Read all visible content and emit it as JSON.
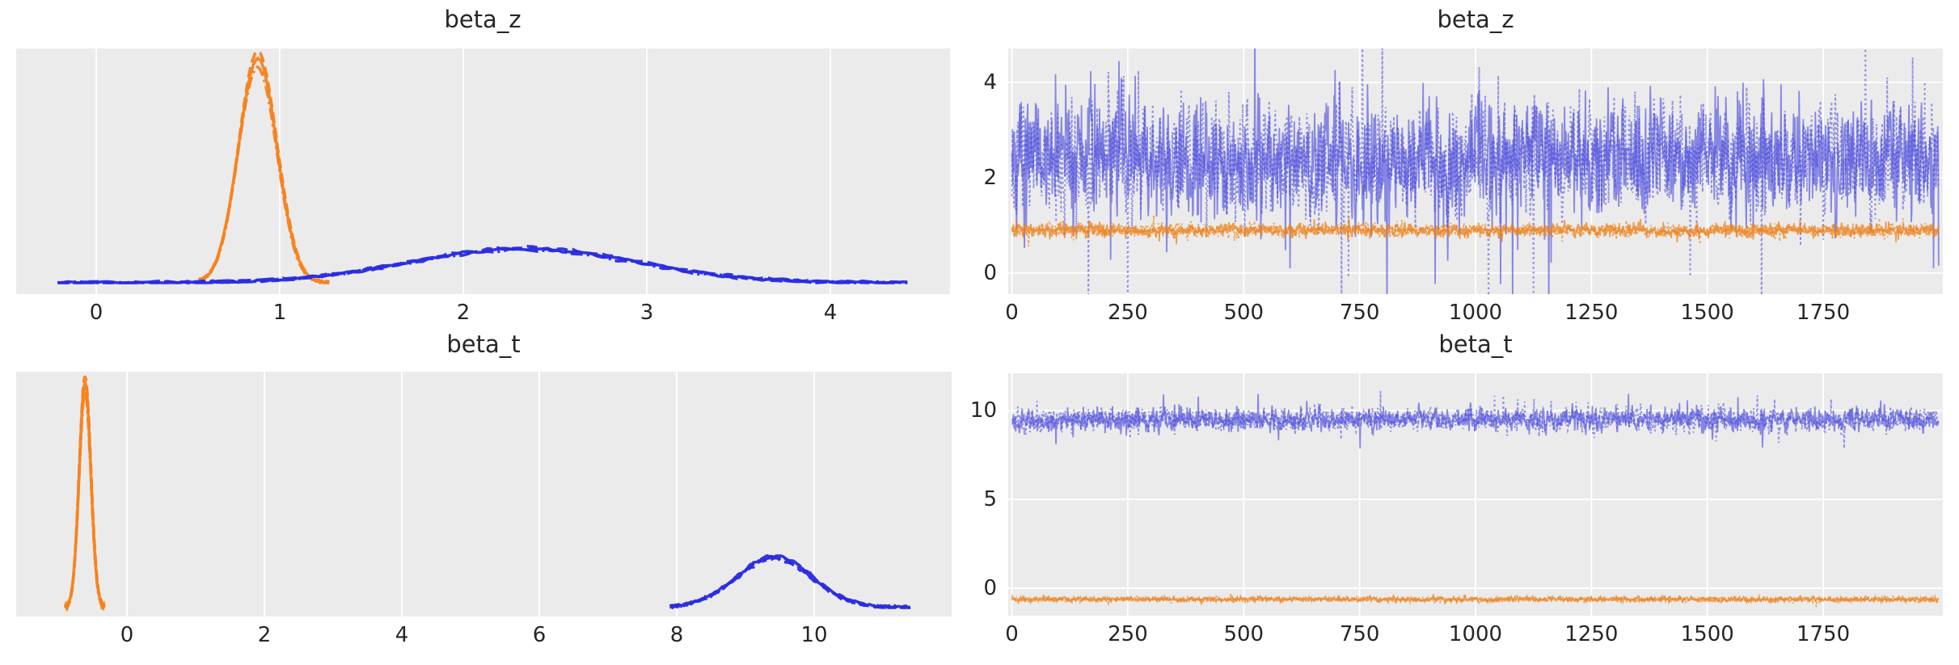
{
  "figure_title": "",
  "colors": {
    "kde_blue": "#2b2be0",
    "kde_orange": "#f5831f",
    "trace_blue": "#4343dc",
    "trace_orange": "#ee7d12",
    "panel_bg": "#ebebeb",
    "grid": "#ffffff",
    "text": "#262626",
    "figure_bg": "#ffffff"
  },
  "chart_data": [
    {
      "id": "beta_z_posterior",
      "type": "line",
      "subtype": "kde",
      "title": "beta_z",
      "xlabel": "",
      "ylabel": "",
      "xlim": [
        -0.436,
        4.652
      ],
      "xticks": [
        0,
        1,
        2,
        3,
        4
      ],
      "yticks": [],
      "grid": "vertical",
      "legend": "none",
      "series": [
        {
          "name": "beta_z[orange] kde",
          "color_key": "kde_orange",
          "dist": "gaussian",
          "mean": 0.88,
          "sd": 0.105,
          "peak_rel": 1.0,
          "range": [
            0.56,
            1.27
          ],
          "chains": 3,
          "linestyles": [
            "solid",
            "dashed",
            "dashdot"
          ]
        },
        {
          "name": "beta_z[blue] kde",
          "color_key": "kde_blue",
          "dist": "gaussian",
          "mean": 2.33,
          "sd": 0.62,
          "peak_rel": 0.152,
          "range": [
            -0.21,
            4.42
          ],
          "chains": 3,
          "linestyles": [
            "solid",
            "dashed",
            "dashdot"
          ]
        }
      ]
    },
    {
      "id": "beta_z_trace",
      "type": "line",
      "subtype": "trace",
      "title": "beta_z",
      "xlabel": "",
      "ylabel": "",
      "xlim": [
        -8,
        2008
      ],
      "ylim": [
        -0.44,
        4.71
      ],
      "xticks": [
        0,
        250,
        500,
        750,
        1000,
        1250,
        1500,
        1750
      ],
      "yticks": [
        0,
        2,
        4
      ],
      "grid": "both",
      "legend": "none",
      "n_draws": 2000,
      "series": [
        {
          "name": "beta_z[blue] trace",
          "color_key": "trace_blue",
          "opacity": 0.6,
          "mean": 2.38,
          "sd": 0.58,
          "ar": 0.3,
          "spike_p": 0.008,
          "spike_mult": 2.6,
          "chains": 2,
          "linestyles": [
            "solid",
            "dotted"
          ],
          "seed": 11
        },
        {
          "name": "beta_z[orange] trace",
          "color_key": "trace_orange",
          "opacity": 0.7,
          "mean": 0.9,
          "sd": 0.07,
          "ar": 0.25,
          "spike_p": 0.006,
          "spike_mult": 2.2,
          "chains": 2,
          "linestyles": [
            "solid",
            "dotted"
          ],
          "seed": 23
        }
      ]
    },
    {
      "id": "beta_t_posterior",
      "type": "line",
      "subtype": "kde",
      "title": "beta_t",
      "xlabel": "",
      "ylabel": "",
      "xlim": [
        -1.612,
        12.0
      ],
      "xticks": [
        0,
        2,
        4,
        6,
        8,
        10
      ],
      "yticks": [],
      "grid": "vertical",
      "legend": "none",
      "series": [
        {
          "name": "beta_t[orange] kde",
          "color_key": "kde_orange",
          "dist": "gaussian",
          "mean": -0.61,
          "sd": 0.085,
          "peak_rel": 1.0,
          "range": [
            -0.9,
            -0.33
          ],
          "chains": 3,
          "linestyles": [
            "solid",
            "dashed",
            "dashdot"
          ]
        },
        {
          "name": "beta_t[blue] kde",
          "color_key": "kde_blue",
          "dist": "gaussian",
          "mean": 9.42,
          "sd": 0.55,
          "peak_rel": 0.224,
          "range": [
            7.9,
            11.4
          ],
          "chains": 3,
          "linestyles": [
            "dashdot",
            "solid",
            "dashed"
          ]
        }
      ]
    },
    {
      "id": "beta_t_trace",
      "type": "line",
      "subtype": "trace",
      "title": "beta_t",
      "xlabel": "",
      "ylabel": "",
      "xlim": [
        -8,
        2008
      ],
      "ylim": [
        -1.55,
        12.1
      ],
      "xticks": [
        0,
        250,
        500,
        750,
        1000,
        1250,
        1500,
        1750
      ],
      "yticks": [
        0,
        5,
        10
      ],
      "grid": "both",
      "legend": "none",
      "n_draws": 2000,
      "series": [
        {
          "name": "beta_t[blue] trace",
          "color_key": "trace_blue",
          "opacity": 0.6,
          "mean": 9.5,
          "sd": 0.32,
          "ar": 0.3,
          "spike_p": 0.01,
          "spike_mult": 2.2,
          "chains": 2,
          "linestyles": [
            "solid",
            "dotted"
          ],
          "seed": 37
        },
        {
          "name": "beta_t[orange] trace",
          "color_key": "trace_orange",
          "opacity": 0.7,
          "mean": -0.63,
          "sd": 0.07,
          "ar": 0.25,
          "spike_p": 0.004,
          "spike_mult": 1.8,
          "chains": 2,
          "linestyles": [
            "solid",
            "dotted"
          ],
          "seed": 51
        }
      ]
    }
  ]
}
